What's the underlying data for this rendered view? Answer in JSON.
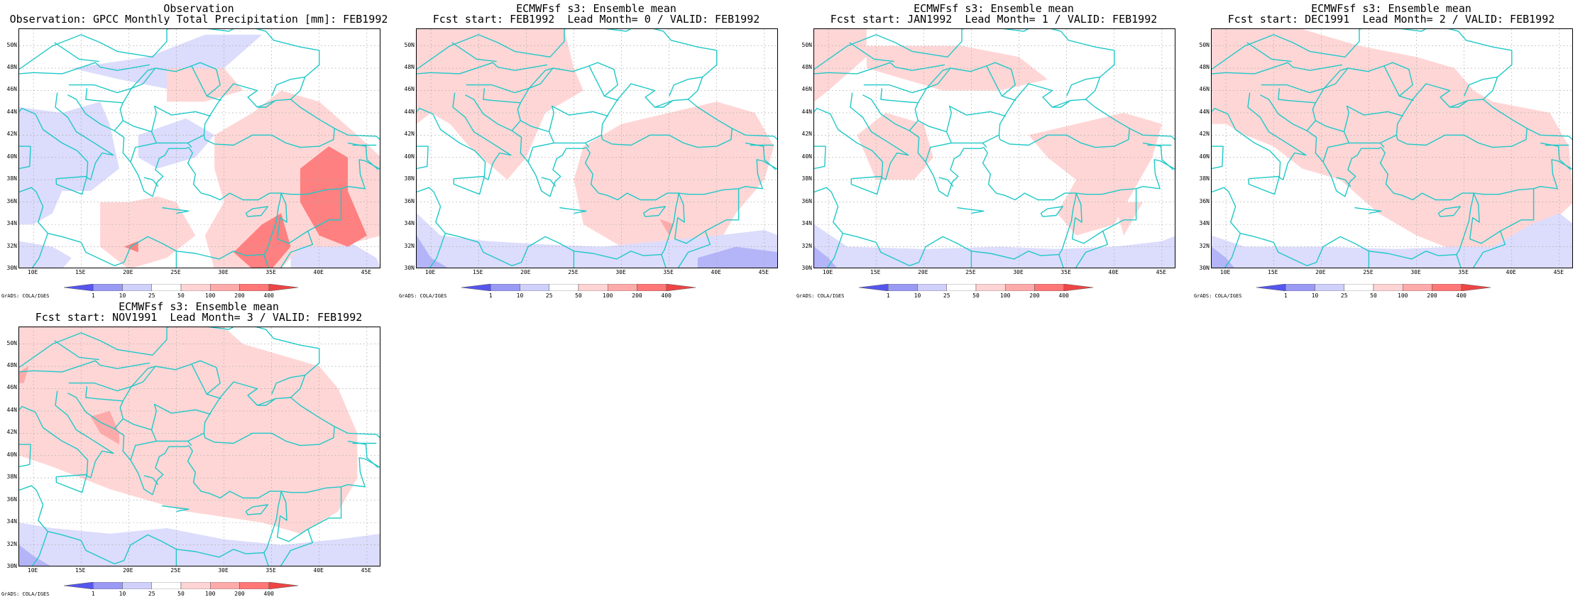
{
  "panels": [
    {
      "title1": "Observation",
      "title2": "Observation: GPCC Monthly Total Precipitation [mm]: FEB1992",
      "variant": "obs"
    },
    {
      "title1": "ECMWFsf s3: Ensemble mean",
      "title2": "Fcst start: FEB1992  Lead Month= 0 / VALID: FEB1992",
      "variant": "f0"
    },
    {
      "title1": "ECMWFsf s3: Ensemble mean",
      "title2": "Fcst start: JAN1992  Lead Month= 1 / VALID: FEB1992",
      "variant": "f1"
    },
    {
      "title1": "ECMWFsf s3: Ensemble mean",
      "title2": "Fcst start: DEC1991  Lead Month= 2 / VALID: FEB1992",
      "variant": "f2"
    },
    {
      "title1": "ECMWFsf s3: Ensemble mean",
      "title2": "Fcst start: NOV1991  Lead Month= 3 / VALID: FEB1992",
      "variant": "f3"
    }
  ],
  "axes": {
    "lat_labels": [
      "50N",
      "48N",
      "46N",
      "44N",
      "42N",
      "40N",
      "38N",
      "36N",
      "34N",
      "32N",
      "30N"
    ],
    "lon_labels": [
      "10E",
      "15E",
      "20E",
      "25E",
      "30E",
      "35E",
      "40E",
      "45E"
    ],
    "lat_range": [
      30,
      51.5
    ],
    "lon_range": [
      8.5,
      46.5
    ]
  },
  "colorbar": {
    "labels": [
      "1",
      "10",
      "25",
      "50",
      "100",
      "200",
      "400"
    ],
    "colors": [
      "#5555ee",
      "#9a9af5",
      "#d0d0fb",
      "#ffffff",
      "#ffd4d4",
      "#ffaaaa",
      "#ff7777",
      "#ee4444"
    ]
  },
  "credit": "GrADS: COLA/IGES",
  "colors": {
    "coast": "#1fc8c8",
    "grid": "#aaaaaa",
    "light_red": "#ffd6d6",
    "mid_red": "#ffaaaa",
    "strong_red": "#ff8080",
    "light_blue": "#dcdcfc",
    "mid_blue": "#b4b4f8",
    "strong_blue": "#8a8af0"
  }
}
